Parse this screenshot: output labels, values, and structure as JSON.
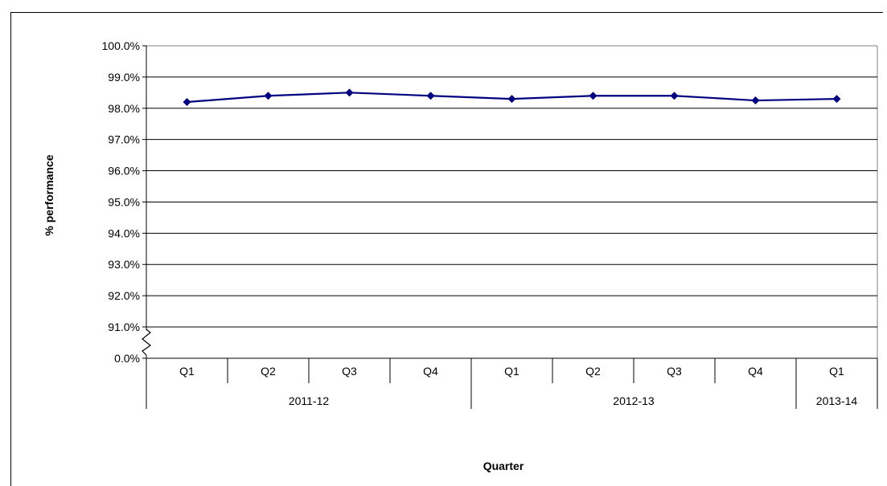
{
  "chart_data": {
    "type": "line",
    "title": "",
    "xlabel": "Quarter",
    "ylabel": "% performance",
    "y_ticks": [
      "100.0%",
      "99.0%",
      "98.0%",
      "97.0%",
      "96.0%",
      "95.0%",
      "94.0%",
      "93.0%",
      "92.0%",
      "91.0%",
      "0.0%"
    ],
    "ylim": [
      91.0,
      100.0
    ],
    "y_axis_break": true,
    "grid": true,
    "legend": "none",
    "categories": [
      "Q1",
      "Q2",
      "Q3",
      "Q4",
      "Q1",
      "Q2",
      "Q3",
      "Q4",
      "Q1"
    ],
    "groups": [
      {
        "label": "2011-12",
        "count": 4
      },
      {
        "label": "2012-13",
        "count": 4
      },
      {
        "label": "2013-14",
        "count": 1
      }
    ],
    "series": [
      {
        "values": [
          98.2,
          98.4,
          98.5,
          98.4,
          98.3,
          98.4,
          98.4,
          98.25,
          98.3
        ],
        "color": "#000080",
        "marker": "diamond"
      }
    ]
  }
}
